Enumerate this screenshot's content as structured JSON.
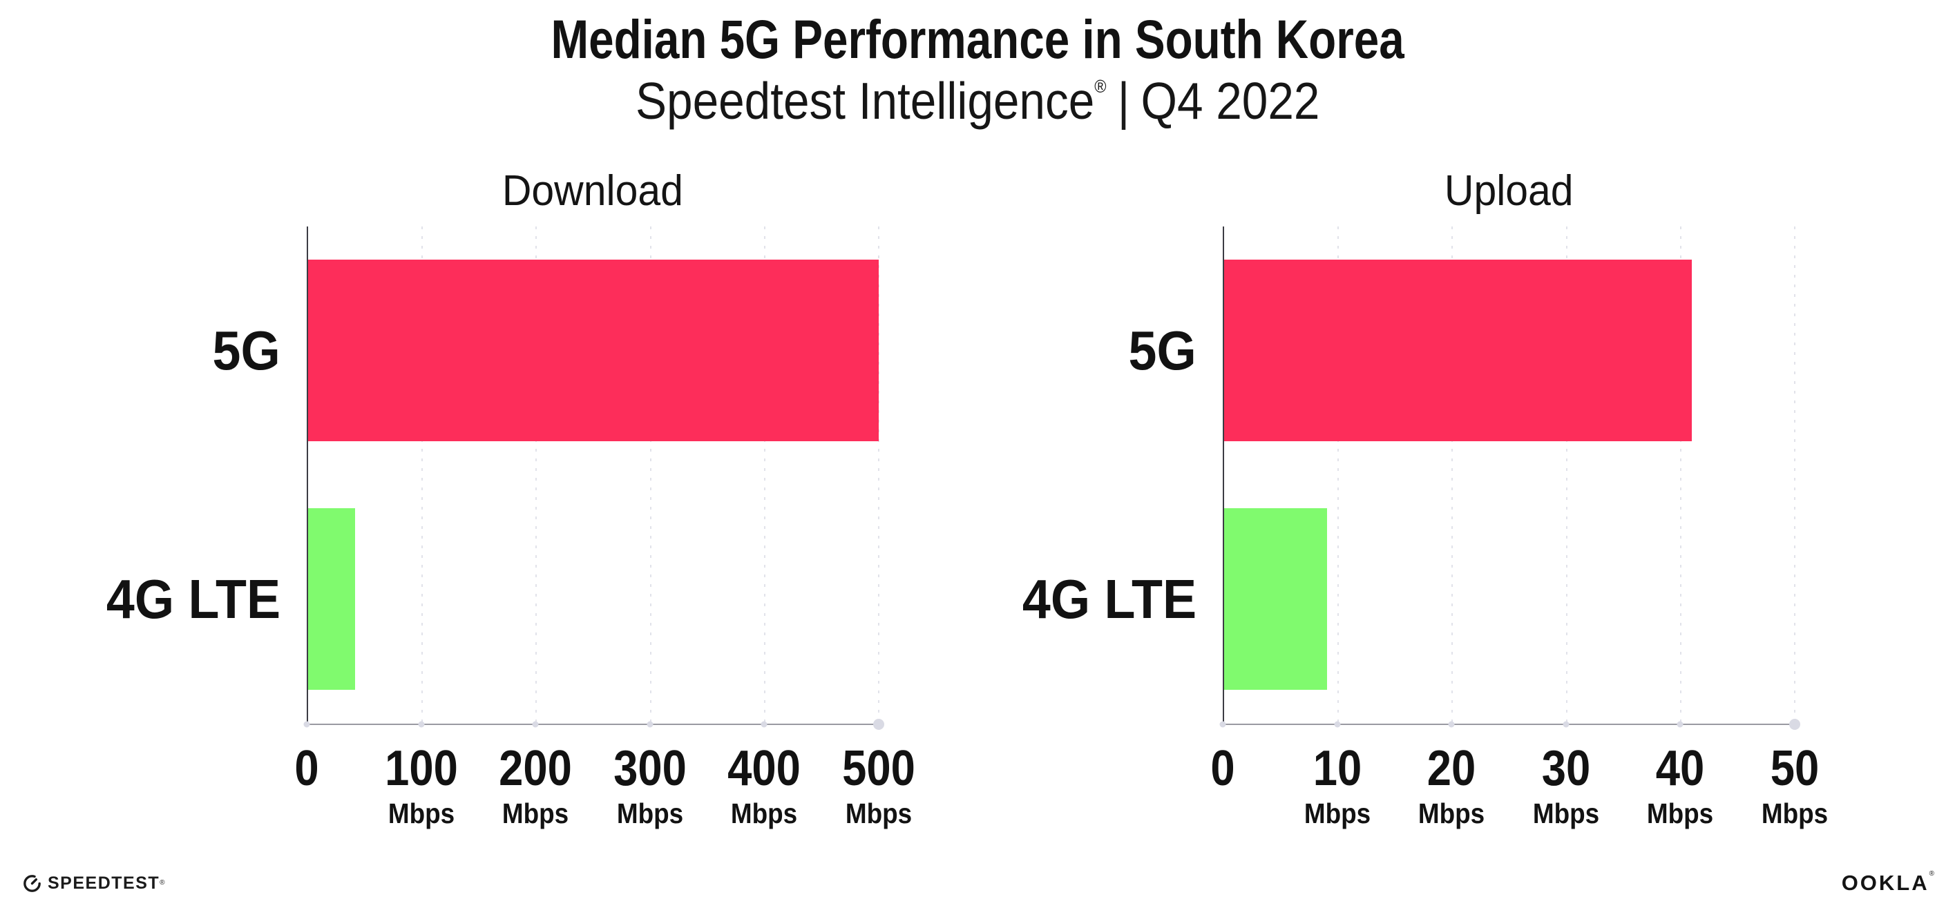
{
  "header": {
    "title": "Median 5G Performance in South Korea",
    "subtitle": {
      "brand": "Speedtest Intelligence",
      "registered_mark": "®",
      "separator": "|",
      "period": "Q4 2022"
    }
  },
  "chart_data": [
    {
      "type": "bar",
      "orientation": "horizontal",
      "title": "Download",
      "categories": [
        "5G",
        "4G LTE"
      ],
      "values": [
        500,
        41
      ],
      "unit": "Mbps",
      "xlim": [
        0,
        500
      ],
      "xticks": [
        0,
        100,
        200,
        300,
        400,
        500
      ],
      "grid": "vertical-dotted",
      "legend": "none",
      "bar_colors": [
        "#FD2D5A",
        "#80FA6E"
      ]
    },
    {
      "type": "bar",
      "orientation": "horizontal",
      "title": "Upload",
      "categories": [
        "5G",
        "4G LTE"
      ],
      "values": [
        41,
        9
      ],
      "unit": "Mbps",
      "xlim": [
        0,
        50
      ],
      "xticks": [
        0,
        10,
        20,
        30,
        40,
        50
      ],
      "grid": "vertical-dotted",
      "legend": "none",
      "bar_colors": [
        "#FD2D5A",
        "#80FA6E"
      ]
    }
  ],
  "colors": {
    "bar_5g": "#FD2D5A",
    "bar_4g_lte": "#80FA6E",
    "gridline": "#E1E2EA",
    "axis_line": "#9A9AA2",
    "y_axis_line": "#3C3C44",
    "axis_dot": "#D9DAE4",
    "text": "#121212"
  },
  "footer": {
    "speedtest": {
      "label": "SPEEDTEST",
      "mark": "®"
    },
    "ookla": {
      "label": "OOKLA",
      "mark": "®"
    }
  }
}
